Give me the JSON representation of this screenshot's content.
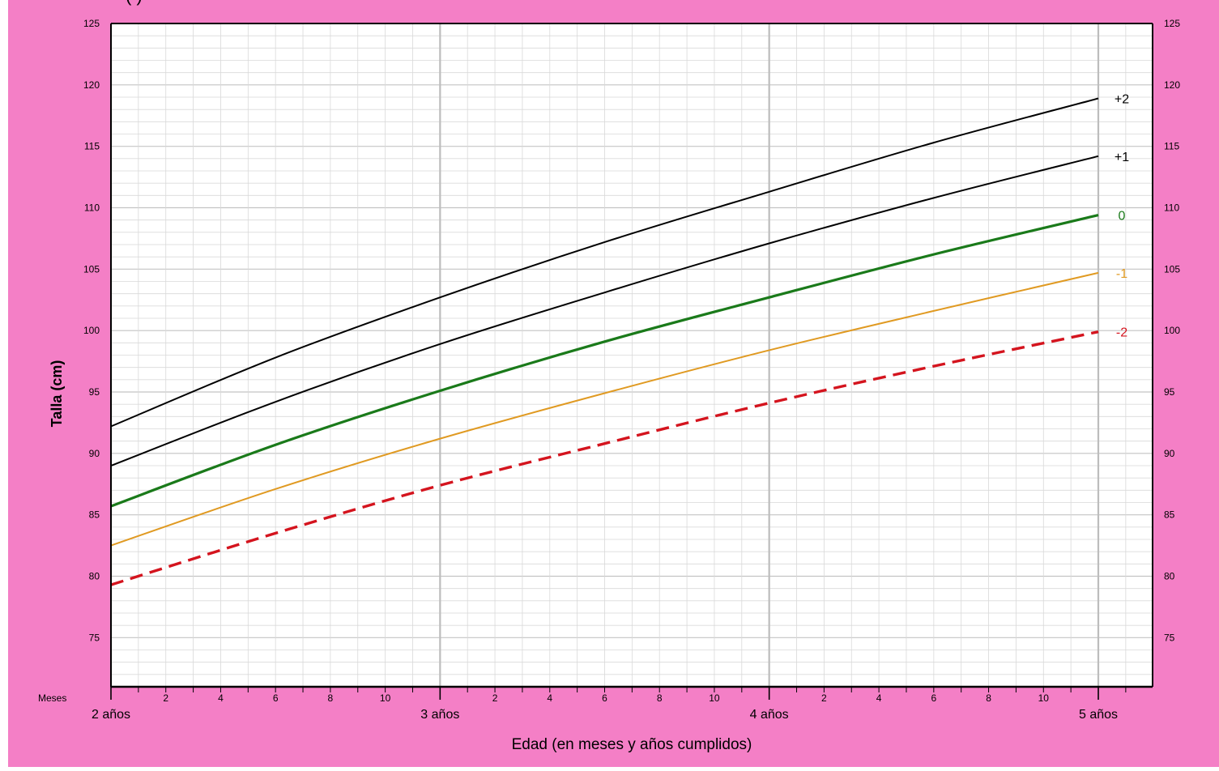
{
  "colors": {
    "background": "#f47fc6",
    "plot_background": "#ffffff",
    "minor_grid": "#d9d9d9",
    "major_grid": "#c4c4c4",
    "year_grid": "#bdbdbd",
    "axis": "#000000",
    "sd_plus2": "#000000",
    "sd_plus1": "#000000",
    "sd_0": "#1a7a1a",
    "sd_minus1": "#e09a22",
    "sd_minus2": "#d4141e"
  },
  "header": {
    "partial_text": "(                )"
  },
  "chart_data": {
    "type": "line",
    "title": "",
    "xlabel": "Edad (en meses y años cumplidos)",
    "ylabel": "Talla (cm)",
    "x_unit": "months",
    "xlim": [
      24,
      60
    ],
    "ylim": [
      71,
      125
    ],
    "y_ticks": [
      75,
      80,
      85,
      90,
      95,
      100,
      105,
      110,
      115,
      120,
      125
    ],
    "months_label": "Meses",
    "month_tick_labels": [
      {
        "x": 26,
        "label": "2"
      },
      {
        "x": 28,
        "label": "4"
      },
      {
        "x": 30,
        "label": "6"
      },
      {
        "x": 32,
        "label": "8"
      },
      {
        "x": 34,
        "label": "10"
      },
      {
        "x": 38,
        "label": "2"
      },
      {
        "x": 40,
        "label": "4"
      },
      {
        "x": 42,
        "label": "6"
      },
      {
        "x": 44,
        "label": "8"
      },
      {
        "x": 46,
        "label": "10"
      },
      {
        "x": 50,
        "label": "2"
      },
      {
        "x": 52,
        "label": "4"
      },
      {
        "x": 54,
        "label": "6"
      },
      {
        "x": 56,
        "label": "8"
      },
      {
        "x": 58,
        "label": "10"
      }
    ],
    "year_tick_labels": [
      {
        "x": 24,
        "label": "2 años"
      },
      {
        "x": 36,
        "label": "3 años"
      },
      {
        "x": 48,
        "label": "4 años"
      },
      {
        "x": 60,
        "label": "5 años"
      }
    ],
    "x": [
      24,
      30,
      36,
      42,
      48,
      54,
      60
    ],
    "series": [
      {
        "name": "+2",
        "key": "sd_plus2",
        "dashed": false,
        "width": 2,
        "values": [
          92.2,
          97.8,
          102.7,
          107.2,
          111.3,
          115.3,
          118.9
        ]
      },
      {
        "name": "+1",
        "key": "sd_plus1",
        "dashed": false,
        "width": 2,
        "values": [
          89.0,
          94.2,
          98.9,
          103.1,
          107.1,
          110.8,
          114.2
        ]
      },
      {
        "name": "0",
        "key": "sd_0",
        "dashed": false,
        "width": 3.2,
        "values": [
          85.7,
          90.7,
          95.1,
          99.1,
          102.7,
          106.2,
          109.4
        ]
      },
      {
        "name": "-1",
        "key": "sd_minus1",
        "dashed": false,
        "width": 2,
        "values": [
          82.5,
          87.1,
          91.2,
          94.9,
          98.4,
          101.6,
          104.7
        ]
      },
      {
        "name": "-2",
        "key": "sd_minus2",
        "dashed": true,
        "width": 3.4,
        "values": [
          79.3,
          83.5,
          87.4,
          90.8,
          94.1,
          97.1,
          99.9
        ]
      }
    ]
  }
}
